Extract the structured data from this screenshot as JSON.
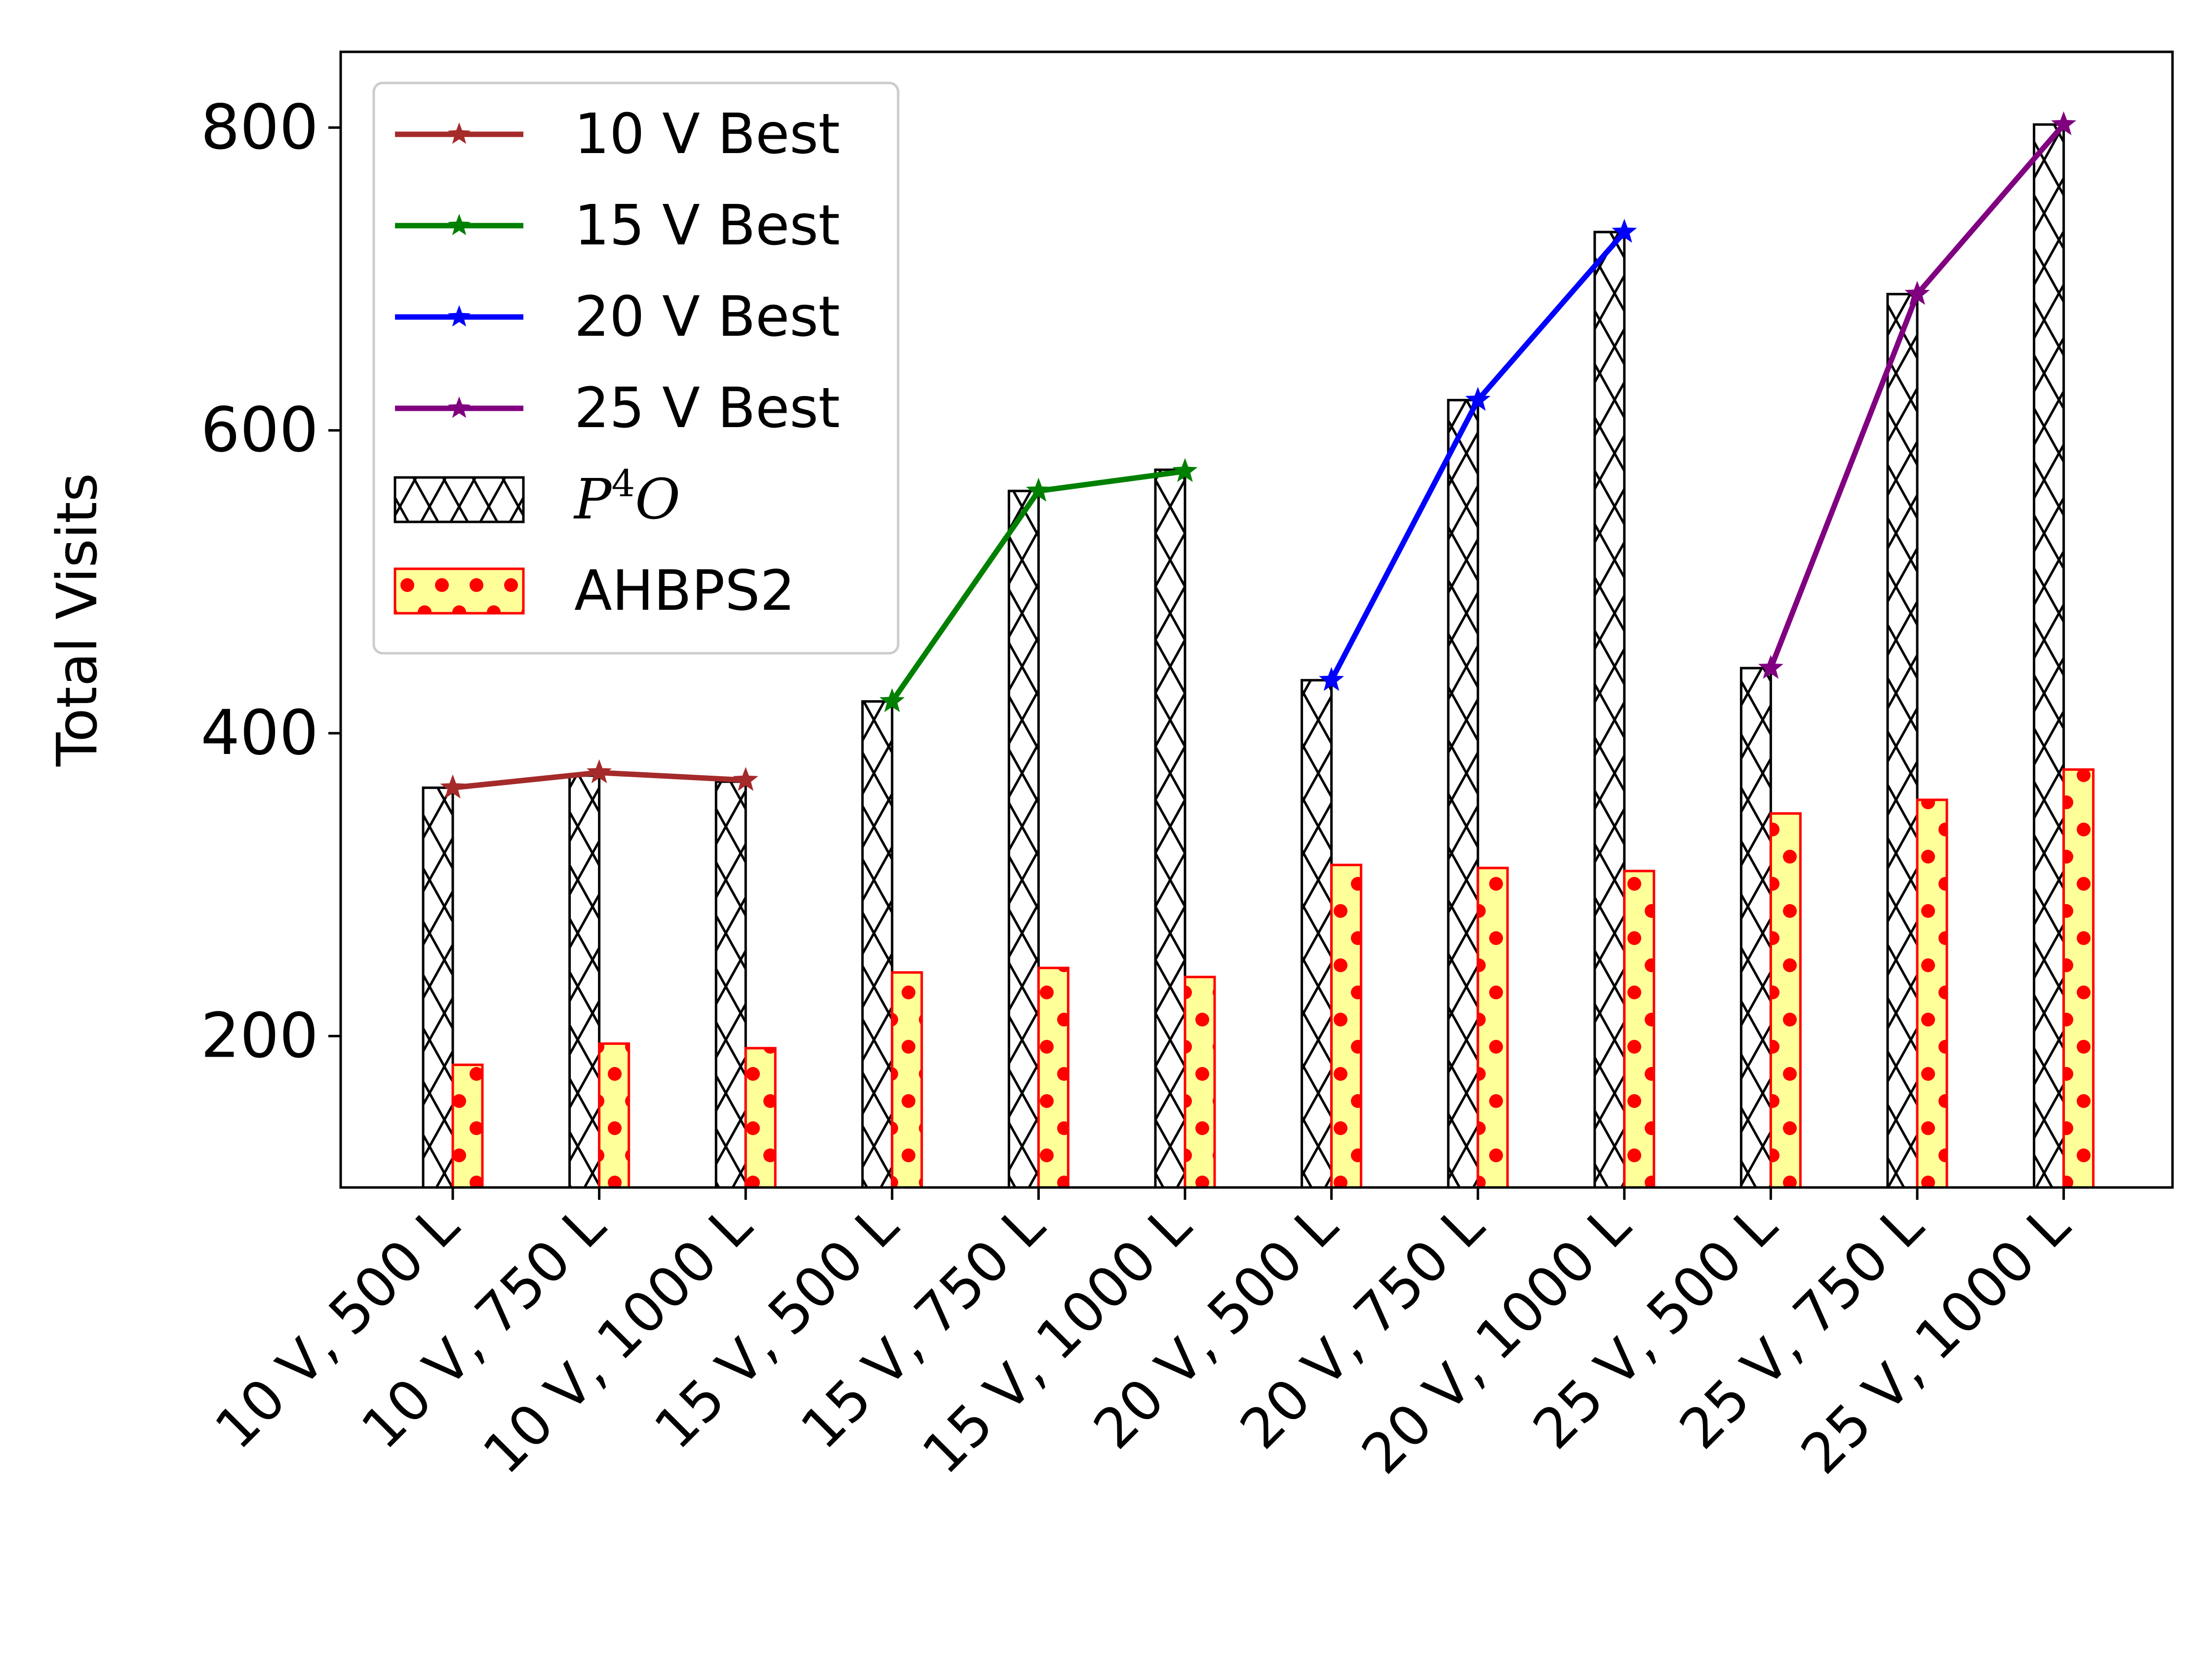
{
  "chart_data": {
    "type": "bar",
    "ylabel": "Total Visits",
    "ylim": [
      100,
      850
    ],
    "yticks": [
      200,
      400,
      600,
      800
    ],
    "categories": [
      "10 V, 500 L",
      "10 V, 750 L",
      "10 V, 1000 L",
      "15 V, 500 L",
      "15 V, 750 L",
      "15 V, 1000 L",
      "20 V, 500 L",
      "20 V, 750 L",
      "20 V, 1000 L",
      "25 V, 500 L",
      "25 V, 750 L",
      "25 V, 1000 L"
    ],
    "bar_series": [
      {
        "name": "P4O",
        "legend_main": "P",
        "legend_sup": "4",
        "legend_tail": "O",
        "values": [
          364,
          372,
          368,
          421,
          560,
          574,
          435,
          620,
          731,
          443,
          690,
          802
        ],
        "fill": "#ffffff",
        "edge": "#000000",
        "hatch": "x-cross"
      },
      {
        "name": "AHBPS2",
        "values": [
          181,
          195,
          192,
          242,
          245,
          239,
          313,
          311,
          309,
          347,
          356,
          376
        ],
        "fill": "#ffff99",
        "edge": "#ff0000",
        "hatch": "dots"
      }
    ],
    "line_series": [
      {
        "name": "10 V Best",
        "color": "#a52a2a",
        "category_indices": [
          0,
          1,
          2
        ],
        "values": [
          364,
          374,
          369
        ]
      },
      {
        "name": "15 V Best",
        "color": "#008000",
        "category_indices": [
          3,
          4,
          5
        ],
        "values": [
          421,
          560,
          573
        ]
      },
      {
        "name": "20 V Best",
        "color": "#0000ff",
        "category_indices": [
          6,
          7,
          8
        ],
        "values": [
          435,
          620,
          731
        ]
      },
      {
        "name": "25 V Best",
        "color": "#800080",
        "category_indices": [
          9,
          10,
          11
        ],
        "values": [
          443,
          690,
          802
        ]
      }
    ],
    "legend_position": "upper-left"
  }
}
